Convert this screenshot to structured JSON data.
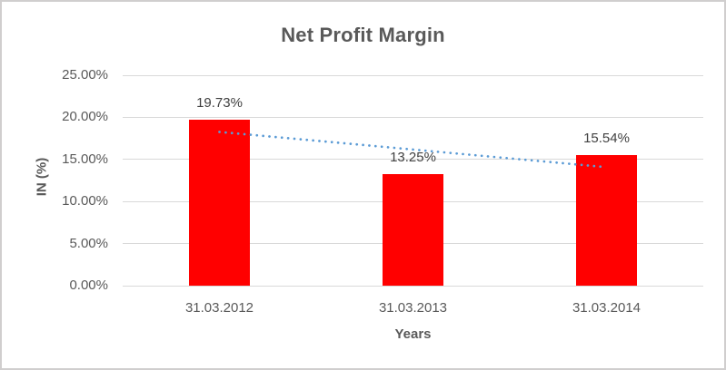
{
  "chart_data": {
    "type": "bar",
    "title": "Net Profit Margin",
    "xlabel": "Years",
    "ylabel": "IN (%)",
    "categories": [
      "31.03.2012",
      "31.03.2013",
      "31.03.2014"
    ],
    "values": [
      19.73,
      13.25,
      15.54
    ],
    "data_labels": [
      "19.73%",
      "13.25%",
      "15.54%"
    ],
    "y_ticks": [
      {
        "value": 25,
        "label": "25.00%"
      },
      {
        "value": 20,
        "label": "20.00%"
      },
      {
        "value": 15,
        "label": "15.00%"
      },
      {
        "value": 10,
        "label": "10.00%"
      },
      {
        "value": 5,
        "label": "5.00%"
      },
      {
        "value": 0,
        "label": "0.00%"
      }
    ],
    "ylim": [
      0,
      25
    ],
    "grid": true,
    "legend": false,
    "bar_color": "#ff0000",
    "trendline": {
      "type": "linear",
      "style": "dotted",
      "color": "#5b9bd5"
    },
    "colors": {
      "title_text": "#595959",
      "axis_text": "#595959",
      "data_label_text": "#404040",
      "gridline": "#d9d9d9",
      "chart_border": "#d0cece"
    }
  }
}
